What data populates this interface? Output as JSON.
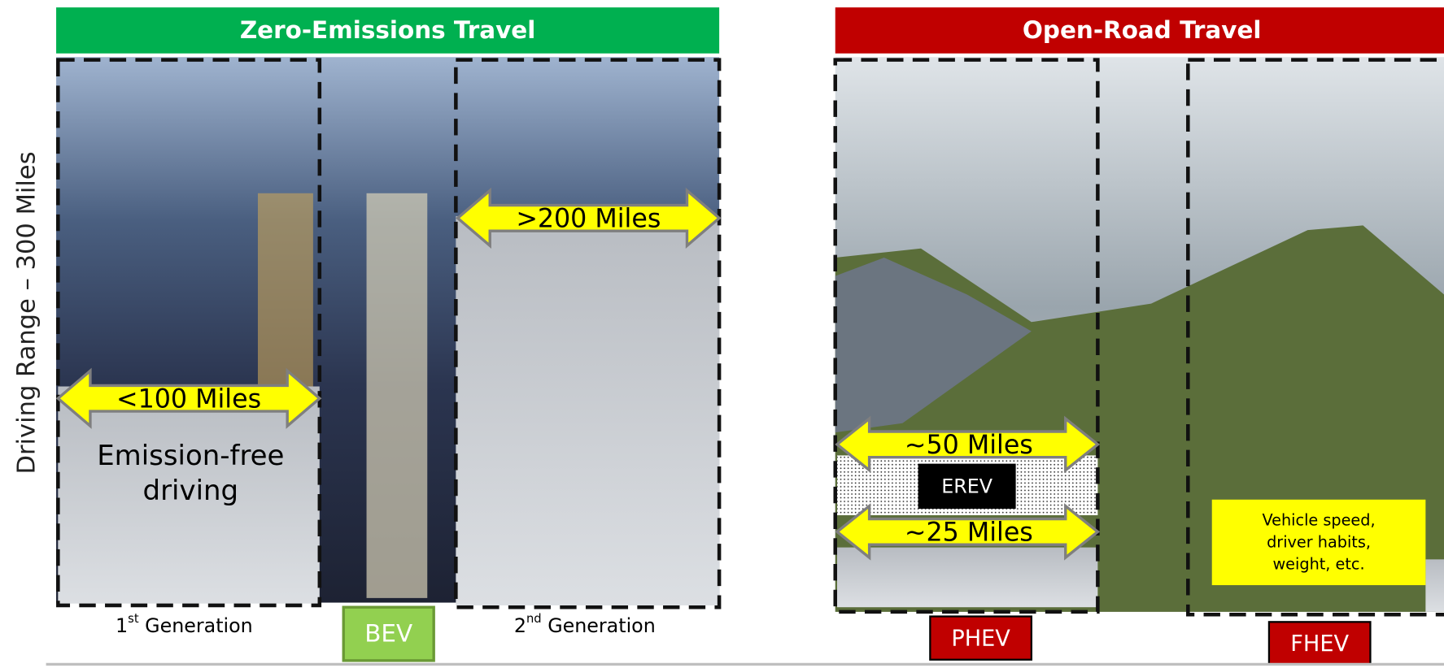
{
  "axis_label": "Driving Range – 300 Miles",
  "left_panel": {
    "title": "Zero-Emissions Travel",
    "short_range": "<100 Miles",
    "long_range": ">200 Miles",
    "note_lines": [
      "Emission-free",
      "driving"
    ],
    "first_gen": {
      "number": "1",
      "suffix": "st",
      "rest": " Generation"
    },
    "second_gen": {
      "number": "2",
      "suffix": "nd",
      "rest": " Generation"
    },
    "badge": "BEV"
  },
  "right_panel": {
    "title": "Open-Road Travel",
    "upper_range": "~50 Miles",
    "inner_badge": "EREV",
    "lower_range": "~25 Miles",
    "note_lines": [
      "Vehicle speed,",
      "driver habits,",
      "weight, etc."
    ],
    "left_badge": "PHEV",
    "right_badge": "FHEV"
  }
}
